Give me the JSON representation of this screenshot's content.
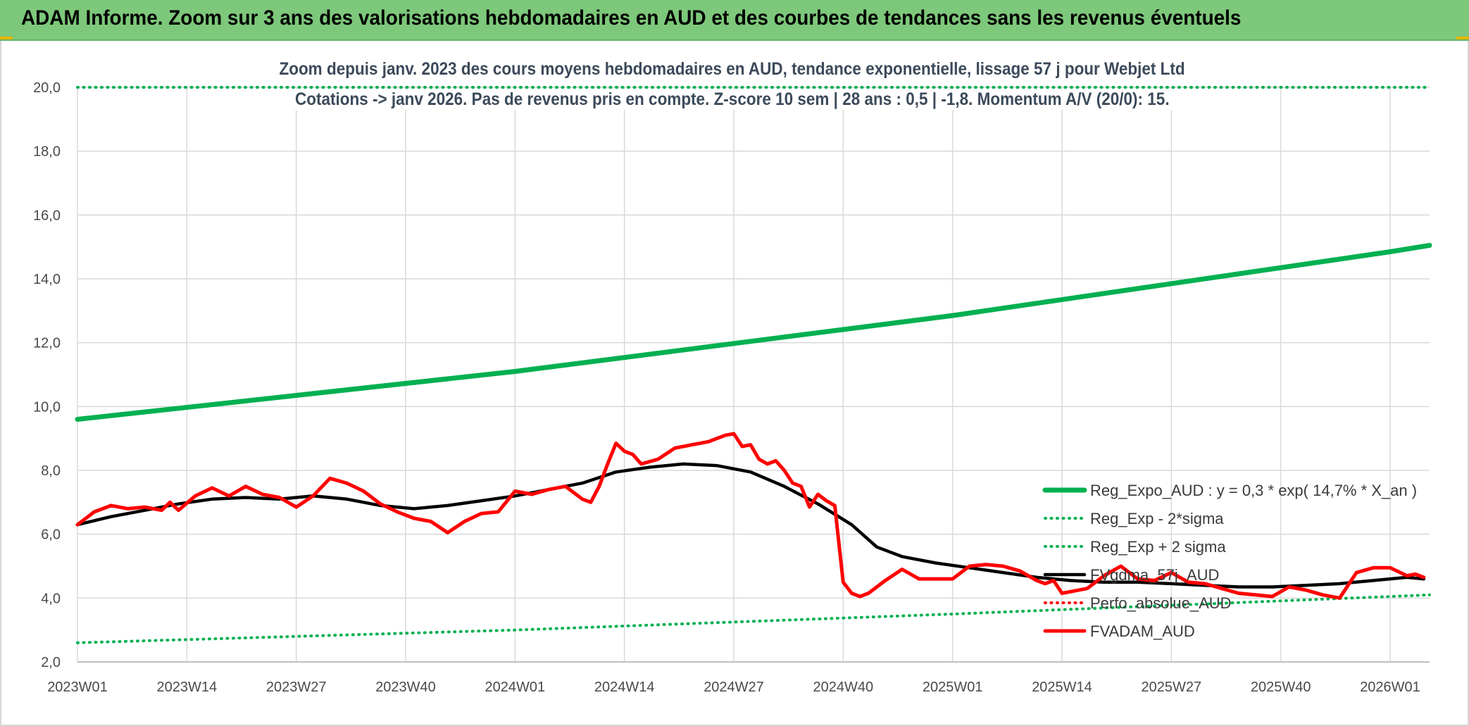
{
  "header": {
    "title": "ADAM Informe. Zoom sur 3 ans des valorisations hebdomadaires en AUD et des courbes de tendances sans les revenus éventuels"
  },
  "chart_data": {
    "type": "line",
    "title": "Zoom depuis janv. 2023 des cours moyens hebdomadaires en AUD, tendance exponentielle, lissage 57 j pour Webjet Ltd",
    "subtitle": "Cotations -> janv 2026. Pas de revenus pris en compte. Z-score 10 sem | 28 ans : 0,5 | -1,8. Momentum A/V (20/0): 15.",
    "xlabel": "",
    "ylabel": "",
    "ylim": [
      2.0,
      20.0
    ],
    "y_ticks": [
      "2,0",
      "4,0",
      "6,0",
      "8,0",
      "10,0",
      "12,0",
      "14,0",
      "16,0",
      "18,0",
      "20,0"
    ],
    "x_ticks": [
      "2023W01",
      "2023W14",
      "2023W27",
      "2023W40",
      "2024W01",
      "2024W14",
      "2024W27",
      "2024W40",
      "2025W01",
      "2025W14",
      "2025W27",
      "2025W40",
      "2026W01"
    ],
    "grid": true,
    "legend_position": "right",
    "colors": {
      "green": "#00b050",
      "black": "#000000",
      "red": "#ff0000",
      "title_text": "#3c4a5a",
      "grid": "#d9d9d9"
    },
    "series": [
      {
        "name": "Reg_Expo_AUD : y = 0,3 * exp( 14,7% *  X_an )",
        "style": "solid-thick",
        "color": "#00b050",
        "x": [
          "2023W01",
          "2024W01",
          "2025W01",
          "2026W01",
          "2026W05"
        ],
        "values": [
          9.6,
          11.1,
          12.85,
          14.85,
          15.05
        ]
      },
      {
        "name": "Reg_Exp - 2*sigma",
        "style": "dotted",
        "color": "#00b050",
        "x": [
          "2023W01",
          "2024W01",
          "2025W01",
          "2026W01",
          "2026W05"
        ],
        "values": [
          2.6,
          3.0,
          3.5,
          4.05,
          4.1
        ]
      },
      {
        "name": "Reg_Exp + 2 sigma",
        "style": "dotted",
        "color": "#00b050",
        "x": [
          "2023W01",
          "2026W05"
        ],
        "values": [
          20.0,
          20.0
        ]
      },
      {
        "name": "FVgdma_57j_AUD",
        "style": "solid",
        "color": "#000000",
        "x": [
          "2023W01",
          "2023W05",
          "2023W09",
          "2023W13",
          "2023W17",
          "2023W21",
          "2023W25",
          "2023W29",
          "2023W33",
          "2023W37",
          "2023W41",
          "2023W45",
          "2023W49",
          "2024W01",
          "2024W05",
          "2024W09",
          "2024W13",
          "2024W17",
          "2024W21",
          "2024W25",
          "2024W29",
          "2024W33",
          "2024W37",
          "2024W41",
          "2024W44",
          "2024W47",
          "2024W51",
          "2025W03",
          "2025W07",
          "2025W11",
          "2025W15",
          "2025W19",
          "2025W23",
          "2025W27",
          "2025W31",
          "2025W35",
          "2025W39",
          "2025W43",
          "2025W47",
          "2025W51",
          "2026W03",
          "2026W05"
        ],
        "values": [
          6.3,
          6.55,
          6.75,
          6.95,
          7.1,
          7.15,
          7.1,
          7.2,
          7.1,
          6.9,
          6.8,
          6.9,
          7.05,
          7.2,
          7.4,
          7.6,
          7.95,
          8.1,
          8.2,
          8.15,
          7.95,
          7.5,
          6.95,
          6.3,
          5.6,
          5.3,
          5.1,
          4.95,
          4.8,
          4.65,
          4.55,
          4.5,
          4.5,
          4.45,
          4.4,
          4.35,
          4.35,
          4.4,
          4.45,
          4.55,
          4.65,
          4.6
        ]
      },
      {
        "name": "Perfo_absolue_AUD",
        "style": "dotted",
        "color": "#ff0000",
        "x": [],
        "values": []
      },
      {
        "name": "FVADAM_AUD",
        "style": "solid-thick",
        "color": "#ff0000",
        "x": [
          "2023W01",
          "2023W03",
          "2023W05",
          "2023W07",
          "2023W09",
          "2023W11",
          "2023W12",
          "2023W13",
          "2023W15",
          "2023W17",
          "2023W19",
          "2023W21",
          "2023W23",
          "2023W25",
          "2023W27",
          "2023W29",
          "2023W31",
          "2023W33",
          "2023W35",
          "2023W37",
          "2023W39",
          "2023W41",
          "2023W43",
          "2023W45",
          "2023W47",
          "2023W49",
          "2023W51",
          "2024W01",
          "2024W03",
          "2024W05",
          "2024W07",
          "2024W09",
          "2024W10",
          "2024W11",
          "2024W12",
          "2024W13",
          "2024W14",
          "2024W15",
          "2024W16",
          "2024W18",
          "2024W20",
          "2024W22",
          "2024W24",
          "2024W26",
          "2024W27",
          "2024W28",
          "2024W29",
          "2024W30",
          "2024W31",
          "2024W32",
          "2024W33",
          "2024W34",
          "2024W35",
          "2024W36",
          "2024W37",
          "2024W38",
          "2024W39",
          "2024W40",
          "2024W41",
          "2024W42",
          "2024W43",
          "2024W44",
          "2024W45",
          "2024W47",
          "2024W49",
          "2024W51",
          "2025W01",
          "2025W03",
          "2025W05",
          "2025W07",
          "2025W09",
          "2025W11",
          "2025W12",
          "2025W13",
          "2025W14",
          "2025W15",
          "2025W17",
          "2025W19",
          "2025W21",
          "2025W23",
          "2025W25",
          "2025W27",
          "2025W29",
          "2025W31",
          "2025W33",
          "2025W35",
          "2025W37",
          "2025W39",
          "2025W41",
          "2025W43",
          "2025W45",
          "2025W47",
          "2025W49",
          "2025W51",
          "2026W01",
          "2026W03",
          "2026W04",
          "2026W05"
        ],
        "values": [
          6.3,
          6.7,
          6.9,
          6.8,
          6.85,
          6.75,
          7.0,
          6.75,
          7.2,
          7.45,
          7.2,
          7.5,
          7.25,
          7.15,
          6.85,
          7.2,
          7.75,
          7.6,
          7.35,
          6.95,
          6.7,
          6.5,
          6.4,
          6.05,
          6.4,
          6.65,
          6.7,
          7.35,
          7.25,
          7.4,
          7.5,
          7.1,
          7.0,
          7.5,
          8.2,
          8.85,
          8.6,
          8.5,
          8.2,
          8.35,
          8.7,
          8.8,
          8.9,
          9.1,
          9.15,
          8.75,
          8.8,
          8.35,
          8.2,
          8.3,
          8.0,
          7.6,
          7.5,
          6.85,
          7.25,
          7.05,
          6.9,
          4.5,
          4.15,
          4.05,
          4.15,
          4.35,
          4.55,
          4.9,
          4.6,
          4.6,
          4.6,
          5.0,
          5.05,
          5.0,
          4.85,
          4.55,
          4.45,
          4.55,
          4.15,
          4.2,
          4.3,
          4.7,
          5.0,
          4.6,
          4.55,
          4.8,
          4.5,
          4.45,
          4.3,
          4.15,
          4.1,
          4.05,
          4.35,
          4.25,
          4.1,
          4.0,
          4.8,
          4.95,
          4.95,
          4.7,
          4.75,
          4.65
        ]
      }
    ]
  }
}
